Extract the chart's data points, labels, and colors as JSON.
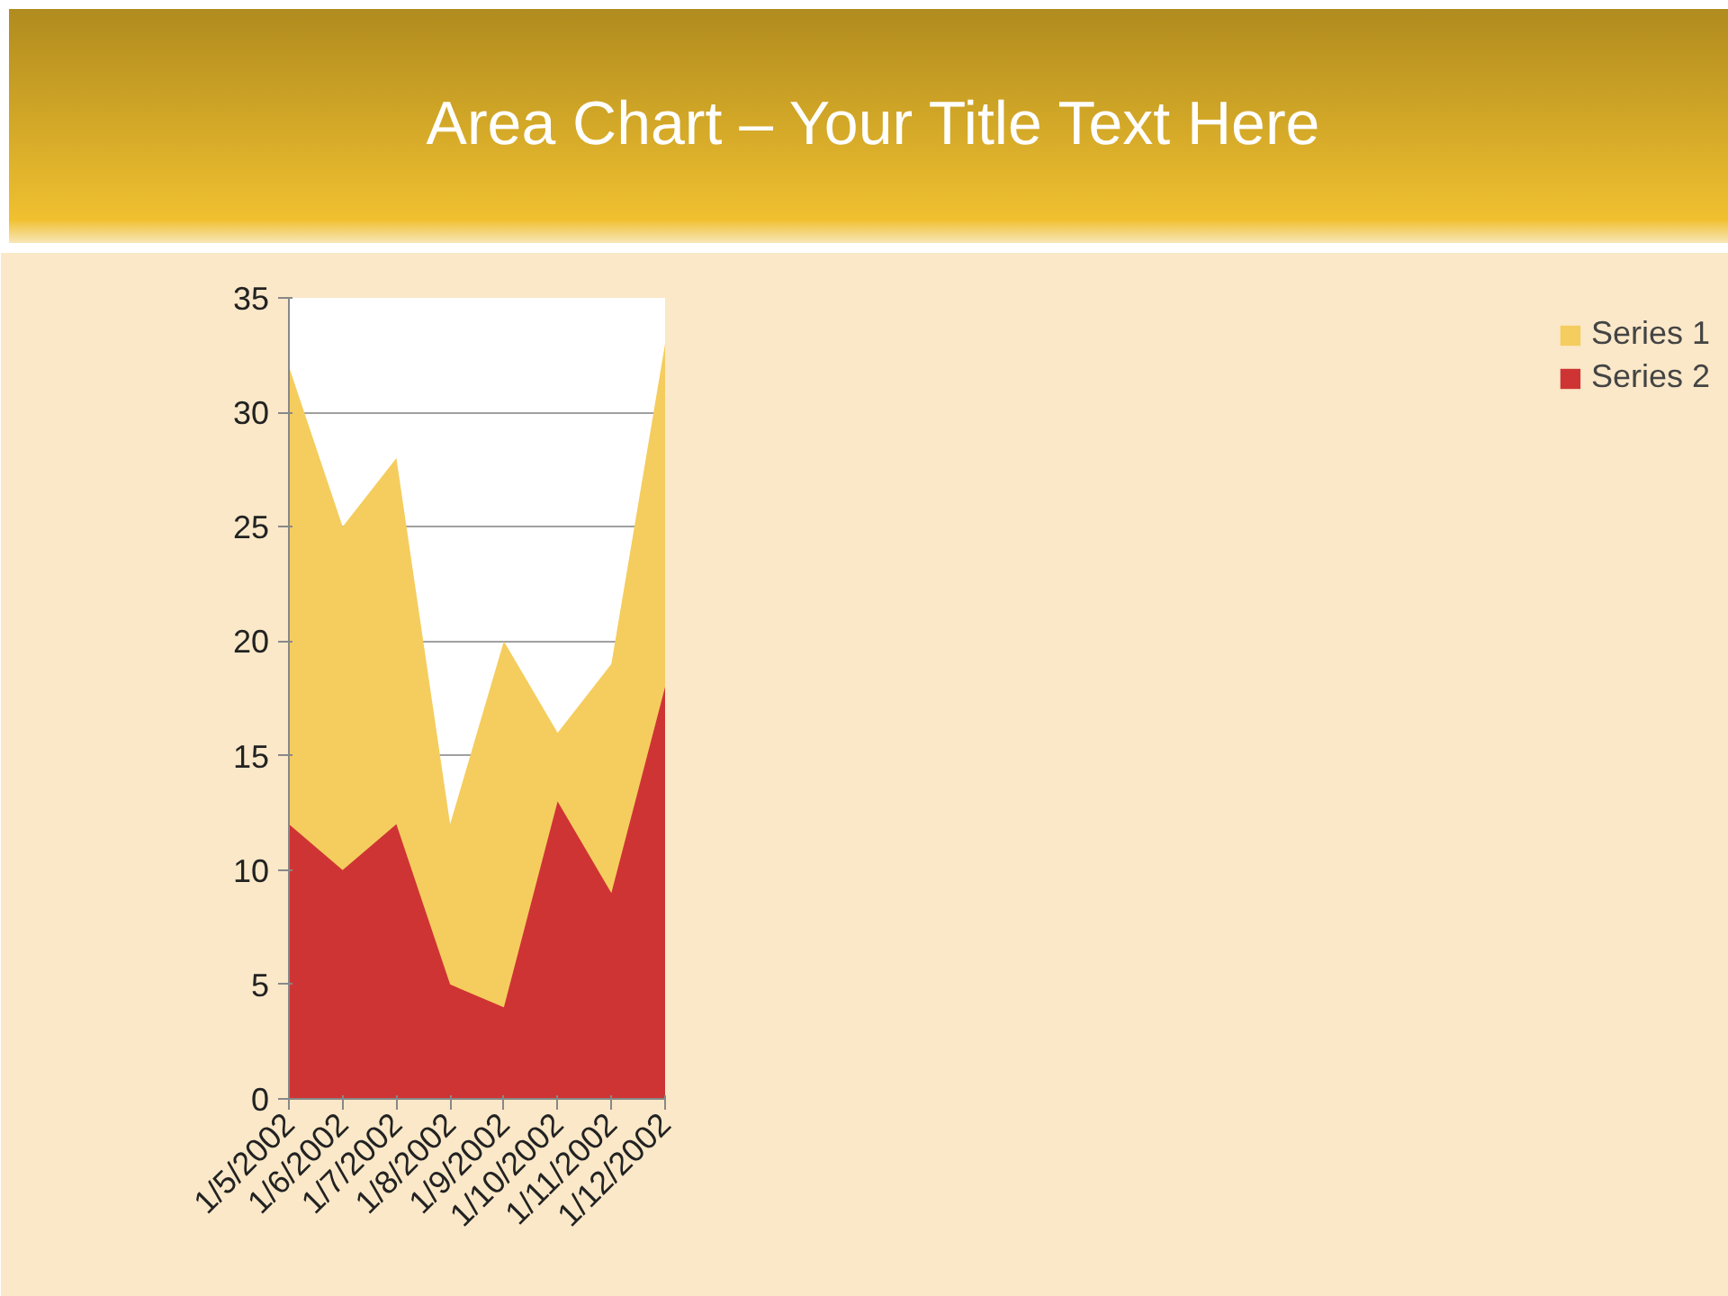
{
  "chart_data": {
    "type": "area",
    "title": "Area Chart – Your Title Text Here",
    "categories": [
      "1/5/2002",
      "1/6/2002",
      "1/7/2002",
      "1/8/2002",
      "1/9/2002",
      "1/10/2002",
      "1/11/2002",
      "1/12/2002"
    ],
    "series": [
      {
        "name": "Series 1",
        "color": "#f5cd5e",
        "values": [
          32,
          25,
          28,
          12,
          20,
          16,
          19,
          33
        ]
      },
      {
        "name": "Series 2",
        "color": "#cf3434",
        "values": [
          12,
          10,
          12,
          5,
          4,
          13,
          9,
          18
        ]
      }
    ],
    "ylim": [
      0,
      35
    ],
    "yticks": [
      0,
      5,
      10,
      15,
      20,
      25,
      30,
      35
    ],
    "grid": "y",
    "legend": "right"
  }
}
